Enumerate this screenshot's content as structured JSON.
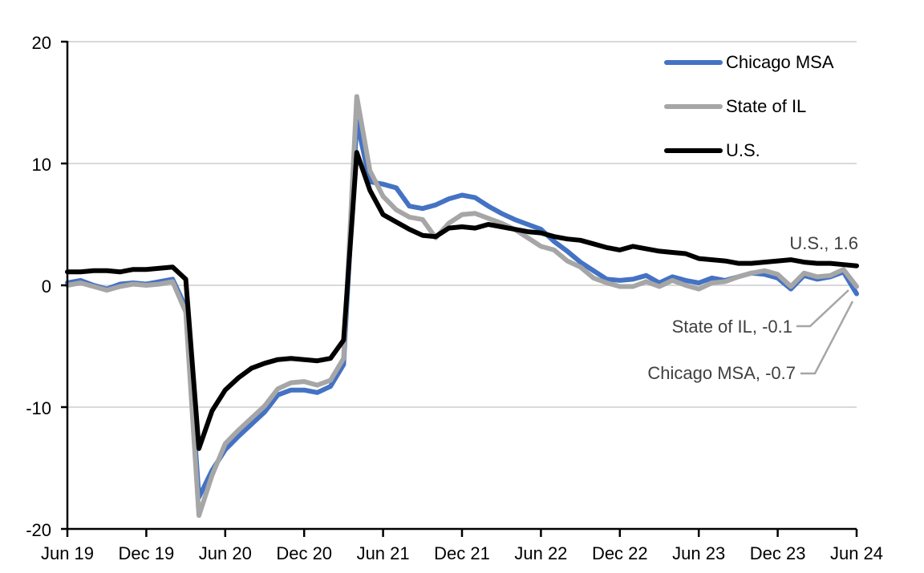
{
  "chart_data": {
    "type": "line",
    "title": "",
    "x_axis": {
      "tick_labels": [
        "Jun 19",
        "Dec 19",
        "Jun 20",
        "Dec 20",
        "Jun 21",
        "Dec 21",
        "Jun 22",
        "Dec 22",
        "Jun 23",
        "Dec 23",
        "Jun 24"
      ],
      "frequency": "monthly",
      "range": [
        "Jun 2019",
        "Jun 2024"
      ]
    },
    "y_axis": {
      "ticks": [
        20,
        10,
        0,
        -10,
        -20
      ],
      "tick_labels": [
        "20",
        "10",
        "0",
        "-10",
        "-20"
      ],
      "ylim": [
        -20,
        20
      ]
    },
    "grid": "horizontal",
    "legend_position": "top-right-inside",
    "colors": {
      "chicago": "#4472C4",
      "il": "#A6A6A6",
      "us": "#000000",
      "gridline": "#D9D9D9",
      "axis": "#000000",
      "tick_label": "#000000",
      "annotation_text": "#404040",
      "leader_line": "#A6A6A6",
      "background": "#FFFFFF"
    },
    "series": [
      {
        "name": "Chicago MSA",
        "color_key": "chicago",
        "values": [
          0.2,
          0.4,
          0.0,
          -0.3,
          0.1,
          0.2,
          0.1,
          0.3,
          0.5,
          -1.8,
          -17.4,
          -15.2,
          -13.5,
          -12.4,
          -11.4,
          -10.4,
          -9.0,
          -8.6,
          -8.6,
          -8.8,
          -8.3,
          -6.5,
          13.5,
          8.5,
          8.3,
          8.0,
          6.5,
          6.3,
          6.6,
          7.1,
          7.4,
          7.2,
          6.5,
          5.9,
          5.4,
          5.0,
          4.6,
          3.6,
          2.8,
          1.9,
          1.2,
          0.5,
          0.4,
          0.5,
          0.8,
          0.2,
          0.7,
          0.4,
          0.2,
          0.6,
          0.4,
          0.7,
          1.0,
          0.9,
          0.6,
          -0.3,
          0.8,
          0.5,
          0.7,
          1.1,
          -0.7
        ]
      },
      {
        "name": "State of IL",
        "color_key": "il",
        "values": [
          0.0,
          0.2,
          -0.1,
          -0.4,
          -0.1,
          0.1,
          0.0,
          0.1,
          0.3,
          -2.2,
          -18.9,
          -15.6,
          -13.0,
          -11.9,
          -10.9,
          -9.9,
          -8.5,
          -8.0,
          -7.9,
          -8.2,
          -7.8,
          -6.0,
          15.5,
          9.4,
          7.3,
          6.2,
          5.6,
          5.4,
          3.9,
          5.1,
          5.8,
          5.9,
          5.5,
          5.1,
          4.6,
          3.9,
          3.2,
          2.9,
          2.0,
          1.5,
          0.6,
          0.2,
          -0.1,
          -0.1,
          0.3,
          -0.1,
          0.4,
          0.0,
          -0.3,
          0.2,
          0.3,
          0.7,
          1.0,
          1.2,
          0.9,
          -0.1,
          1.0,
          0.7,
          0.8,
          1.3,
          -0.1
        ]
      },
      {
        "name": "U.S.",
        "color_key": "us",
        "values": [
          1.1,
          1.1,
          1.2,
          1.2,
          1.1,
          1.3,
          1.3,
          1.4,
          1.5,
          0.5,
          -13.4,
          -10.3,
          -8.6,
          -7.6,
          -6.8,
          -6.4,
          -6.1,
          -6.0,
          -6.1,
          -6.2,
          -6.0,
          -4.5,
          10.9,
          7.8,
          5.8,
          5.2,
          4.6,
          4.1,
          4.0,
          4.7,
          4.8,
          4.7,
          5.0,
          4.8,
          4.6,
          4.4,
          4.3,
          4.0,
          3.8,
          3.7,
          3.4,
          3.1,
          2.9,
          3.2,
          3.0,
          2.8,
          2.7,
          2.6,
          2.2,
          2.1,
          2.0,
          1.8,
          1.8,
          1.9,
          2.0,
          2.1,
          1.9,
          1.8,
          1.8,
          1.7,
          1.6
        ]
      }
    ],
    "annotations": [
      {
        "id": "us",
        "text": "U.S., 1.6",
        "value": 1.6,
        "has_leader": false
      },
      {
        "id": "il",
        "text": "State of IL, -0.1",
        "value": -0.1,
        "has_leader": true
      },
      {
        "id": "chicago",
        "text": "Chicago MSA, -0.7",
        "value": -0.7,
        "has_leader": true
      }
    ]
  }
}
